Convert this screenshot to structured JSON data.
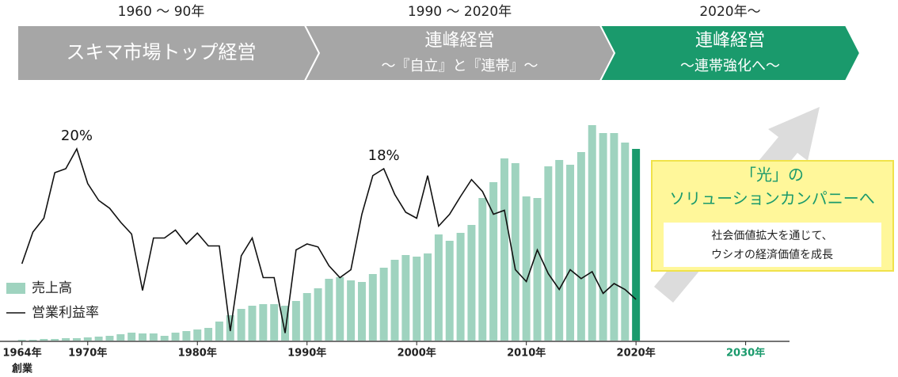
{
  "timeline": [
    {
      "period": "1960 ～ 90年",
      "title": "スキマ市場トップ経営",
      "color": "#a6a6a6"
    },
    {
      "period": "1990 ～ 2020年",
      "title": "連峰経営",
      "subtitle": "～『自立』と『連帯』～",
      "color": "#a6a6a6"
    },
    {
      "period": "2020年～",
      "title": "連峰経営",
      "subtitle": "～連帯強化へ～",
      "color": "#1a9a6c"
    }
  ],
  "callout": {
    "heading": [
      "「光」の",
      "ソリューションカンパニーへ"
    ],
    "body": [
      "社会価値拡大を通じて、",
      "ウシオの経済価値を成長"
    ]
  },
  "chart_data": {
    "type": "bar-line",
    "x": [
      1964,
      1965,
      1966,
      1967,
      1968,
      1969,
      1970,
      1971,
      1972,
      1973,
      1974,
      1975,
      1976,
      1977,
      1978,
      1979,
      1980,
      1981,
      1982,
      1983,
      1984,
      1985,
      1986,
      1987,
      1988,
      1989,
      1990,
      1991,
      1992,
      1993,
      1994,
      1995,
      1996,
      1997,
      1998,
      1999,
      2000,
      2001,
      2002,
      2003,
      2004,
      2005,
      2006,
      2007,
      2008,
      2009,
      2010,
      2011,
      2012,
      2013,
      2014,
      2015,
      2016,
      2017,
      2018,
      2019,
      2020
    ],
    "xlim": [
      1962,
      2034
    ],
    "xticks": [
      {
        "value": 1964,
        "label": "1964年"
      },
      {
        "value": 1970,
        "label": "1970年"
      },
      {
        "value": 1980,
        "label": "1980年"
      },
      {
        "value": 1990,
        "label": "1990年"
      },
      {
        "value": 2000,
        "label": "2000年"
      },
      {
        "value": 2010,
        "label": "2010年"
      },
      {
        "value": 2020,
        "label": "2020年"
      },
      {
        "value": 2030,
        "label": "2030年",
        "color": "#1a9a6c"
      }
    ],
    "founding_label": "創業",
    "ylim": [
      0,
      280
    ],
    "y2lim": [
      0.64,
      23.04
    ],
    "highlight": {
      "x": 2020,
      "color": "#1a9a6c"
    },
    "legend": "bottom-left",
    "series": [
      {
        "name": "売上高",
        "type": "bar",
        "color": "#9fd3bf",
        "values": [
          1,
          1,
          2,
          2,
          3,
          3,
          4,
          5,
          6,
          8,
          10,
          9,
          9,
          6,
          10,
          12,
          14,
          16,
          24,
          32,
          40,
          44,
          46,
          46,
          44,
          50,
          60,
          66,
          78,
          80,
          76,
          74,
          84,
          92,
          102,
          108,
          106,
          110,
          134,
          126,
          136,
          146,
          180,
          200,
          230,
          224,
          182,
          180,
          220,
          228,
          222,
          238,
          272,
          262,
          262,
          250,
          242
        ]
      },
      {
        "name": "営業利益率",
        "type": "line",
        "color": "#111111",
        "axis": "y2",
        "values": [
          8.4,
          11.6,
          13,
          17.6,
          18,
          20,
          16.5,
          14.8,
          14,
          12.6,
          11.4,
          5.7,
          11,
          11,
          11.8,
          10.4,
          11.5,
          10.2,
          10.2,
          1.6,
          9.2,
          11,
          7,
          7,
          1.4,
          9.8,
          10.4,
          10.1,
          8.2,
          7,
          7.8,
          13.4,
          17.3,
          18,
          15.4,
          13.6,
          13,
          17.3,
          12.2,
          13.4,
          15.2,
          16.9,
          15.7,
          13.4,
          13.8,
          7.8,
          6.6,
          9.8,
          7.4,
          5.8,
          7.8,
          6.9,
          7.6,
          5.4,
          6.4,
          5.8,
          4.8
        ],
        "value_labels": [
          null,
          null,
          null,
          null,
          null,
          "20%",
          null,
          null,
          null,
          null,
          null,
          null,
          null,
          null,
          null,
          null,
          null,
          null,
          null,
          null,
          null,
          null,
          null,
          null,
          null,
          null,
          null,
          null,
          null,
          null,
          null,
          null,
          null,
          "18%",
          null,
          null,
          null,
          null,
          null,
          null,
          null,
          null,
          null,
          null,
          null,
          null,
          null,
          null,
          null,
          null,
          null,
          null,
          null,
          null,
          null,
          null,
          null
        ]
      }
    ]
  }
}
